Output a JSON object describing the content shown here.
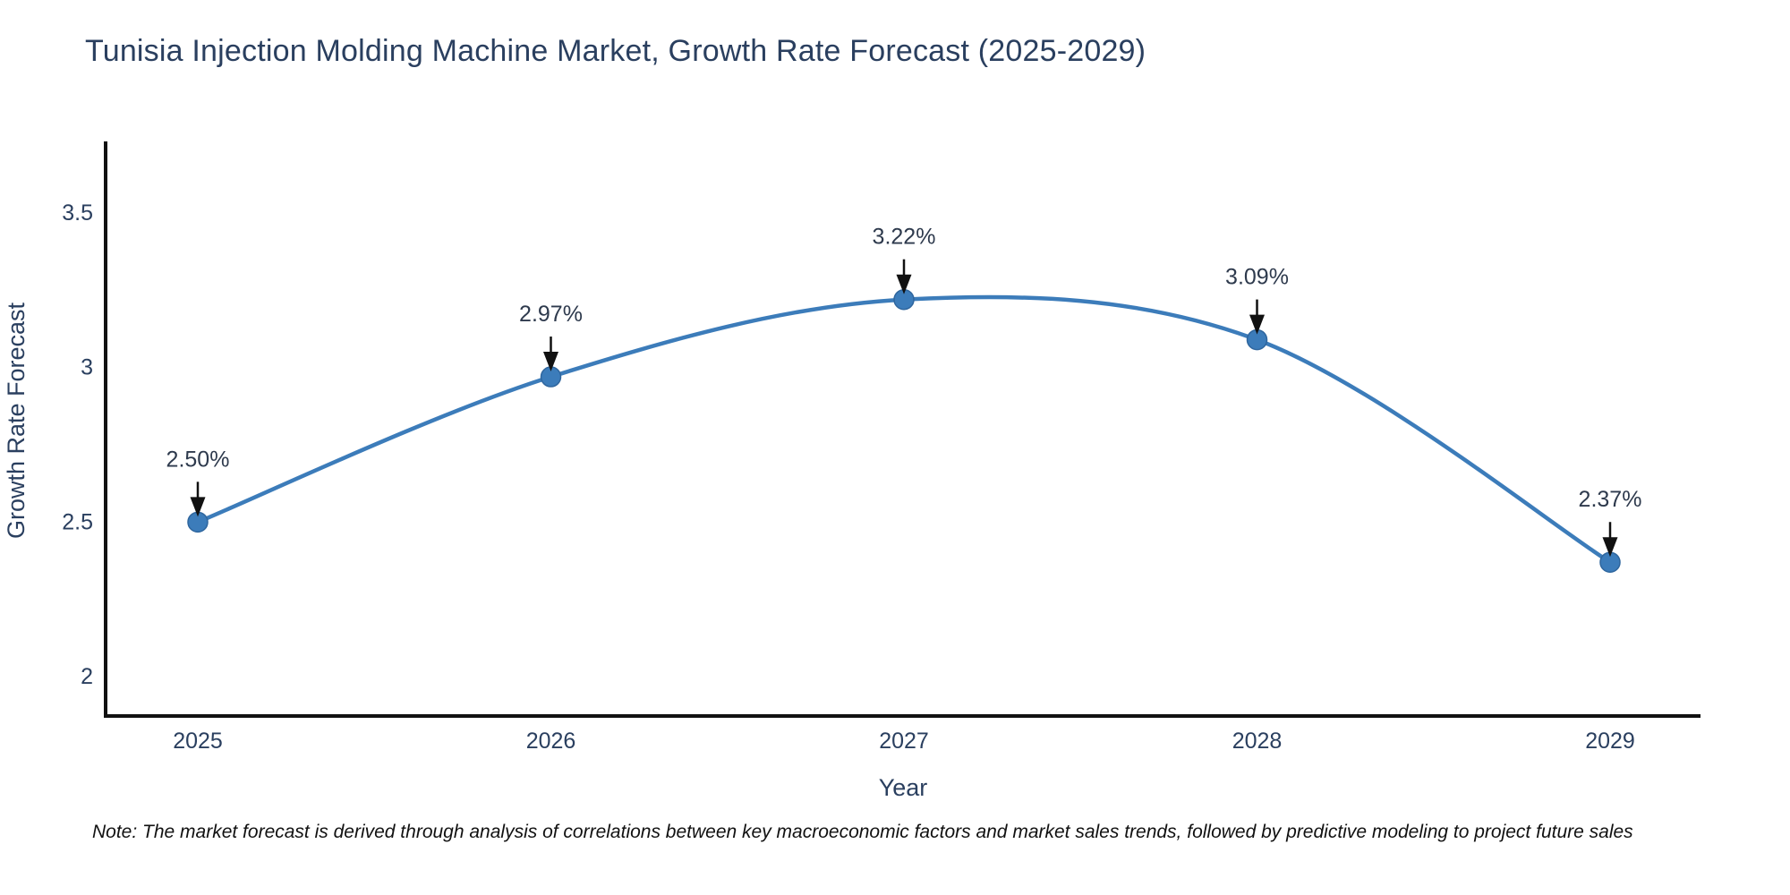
{
  "title": "Tunisia Injection Molding Machine Market, Growth Rate Forecast (2025-2029)",
  "note": "Note: The market forecast is derived through analysis of correlations between key macroeconomic factors and market sales trends, followed by predictive modeling to project future sales",
  "colors": {
    "line": "#3c7cba",
    "marker": "#3c7cba",
    "marker_stroke": "#2f669e",
    "axis": "#111111",
    "text": "#2a3f5f",
    "annotation_arrow": "#111111"
  },
  "chart_data": {
    "type": "line",
    "curve": "spline",
    "title": "Tunisia Injection Molding Machine Market, Growth Rate Forecast (2025-2029)",
    "xlabel": "Year",
    "ylabel": "Growth Rate Forecast",
    "x": [
      2025,
      2026,
      2027,
      2028,
      2029
    ],
    "series": [
      {
        "name": "Growth Rate Forecast",
        "values": [
          2.5,
          2.97,
          3.22,
          3.09,
          2.37
        ]
      }
    ],
    "point_labels": [
      "2.50%",
      "2.97%",
      "3.22%",
      "3.09%",
      "2.37%"
    ],
    "xticklabels": [
      "2025",
      "2026",
      "2027",
      "2028",
      "2029"
    ],
    "yticklabels": [
      "3.5",
      "3",
      "2.5",
      "2"
    ],
    "ytick_values": [
      3.5,
      3,
      2.5,
      2
    ],
    "ylim": [
      1.87,
      3.73
    ],
    "grid": false,
    "legend": false,
    "markers": true,
    "annotations": "value labels with downward arrows above each point"
  }
}
